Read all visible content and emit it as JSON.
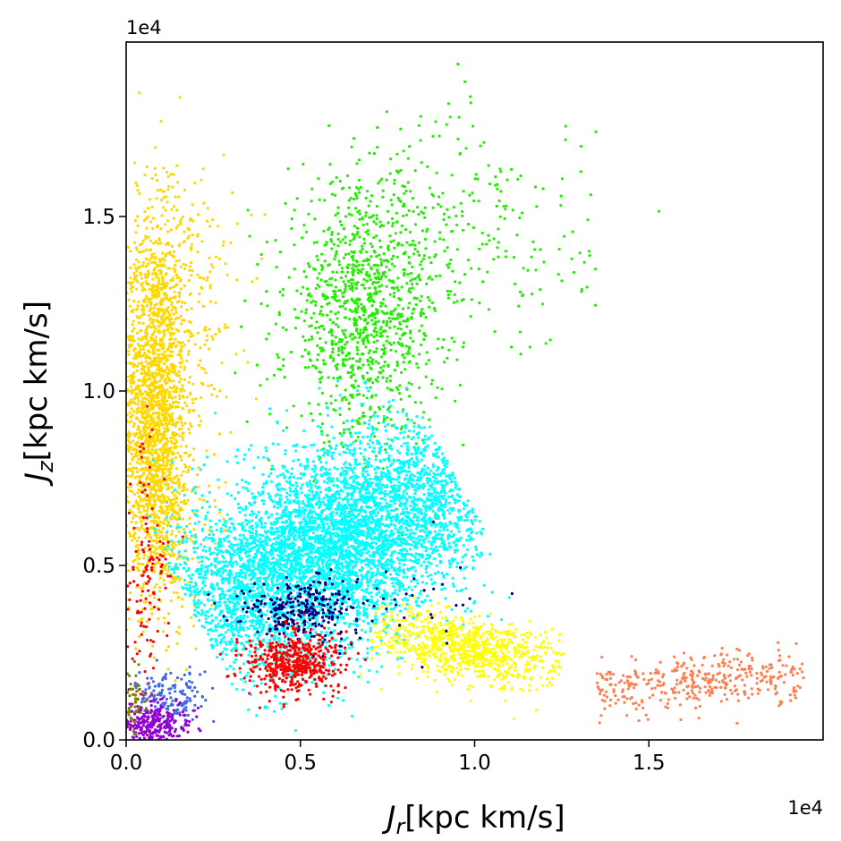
{
  "chart_data": {
    "type": "scatter",
    "title": "",
    "xlabel": {
      "symbol": "J",
      "sub": "r",
      "unit": "[kpc km/s]"
    },
    "ylabel": {
      "symbol": "J",
      "sub": "z",
      "unit": "[kpc km/s]"
    },
    "x_offset_label": "1e4",
    "y_offset_label": "1e4",
    "xlim": [
      0,
      20000
    ],
    "ylim": [
      0,
      20000
    ],
    "xticks": [
      0,
      5000,
      10000,
      15000
    ],
    "yticks": [
      0,
      5000,
      10000,
      15000
    ],
    "xtick_labels": [
      "0.0",
      "0.5",
      "1.0",
      "1.5"
    ],
    "ytick_labels": [
      "0.0",
      "0.5",
      "1.0",
      "1.5"
    ],
    "grid": false,
    "legend": "none",
    "series": [
      {
        "color": "#ffd700",
        "shape": "clusters",
        "clusters": [
          {
            "center": [
              800,
              9500
            ],
            "sd": [
              450,
              2600
            ],
            "n": 1800
          },
          {
            "center": [
              1400,
              12500
            ],
            "sd": [
              900,
              2200
            ],
            "n": 350
          },
          {
            "center": [
              1200,
              6500
            ],
            "sd": [
              700,
              1500
            ],
            "n": 300
          }
        ]
      },
      {
        "color": "#22ee00",
        "shape": "clusters",
        "clusters": [
          {
            "center": [
              6800,
              12200
            ],
            "sd": [
              1100,
              1800
            ],
            "n": 1100
          },
          {
            "center": [
              9800,
              14500
            ],
            "sd": [
              1800,
              1800
            ],
            "n": 250
          }
        ]
      },
      {
        "color": "#00ffff",
        "shape": "band",
        "start": [
          2000,
          3500
        ],
        "end": [
          9500,
          7500
        ],
        "width_sd": 1300,
        "along_sd": 2600,
        "n": 5200
      },
      {
        "color": "#ffff00",
        "shape": "band",
        "start": [
          7000,
          3200
        ],
        "end": [
          12500,
          2000
        ],
        "width_sd": 450,
        "along_sd": 1500,
        "n": 900
      },
      {
        "color": "#ff7f50",
        "shape": "band",
        "start": [
          13500,
          1500
        ],
        "end": [
          19500,
          1900
        ],
        "width_sd": 380,
        "along_sd": 2300,
        "n": 380
      },
      {
        "color": "#000080",
        "shape": "clusters",
        "clusters": [
          {
            "center": [
              5000,
              3700
            ],
            "sd": [
              900,
              450
            ],
            "n": 300
          },
          {
            "center": [
              8000,
              3500
            ],
            "sd": [
              1200,
              900
            ],
            "n": 25
          }
        ]
      },
      {
        "color": "#ff0000",
        "shape": "clusters",
        "clusters": [
          {
            "center": [
              4800,
              2200
            ],
            "sd": [
              700,
              450
            ],
            "n": 500
          },
          {
            "center": [
              600,
              5000
            ],
            "sd": [
              300,
              1800
            ],
            "n": 120
          }
        ]
      },
      {
        "color": "#4169e1",
        "shape": "clusters",
        "clusters": [
          {
            "center": [
              1200,
              1200
            ],
            "sd": [
              600,
              350
            ],
            "n": 150
          }
        ]
      },
      {
        "color": "#9400d3",
        "shape": "clusters",
        "clusters": [
          {
            "center": [
              700,
              500
            ],
            "sd": [
              550,
              300
            ],
            "n": 300
          }
        ]
      },
      {
        "color": "#808000",
        "shape": "clusters",
        "clusters": [
          {
            "center": [
              200,
              1200
            ],
            "sd": [
              150,
              500
            ],
            "n": 50
          }
        ]
      }
    ]
  }
}
